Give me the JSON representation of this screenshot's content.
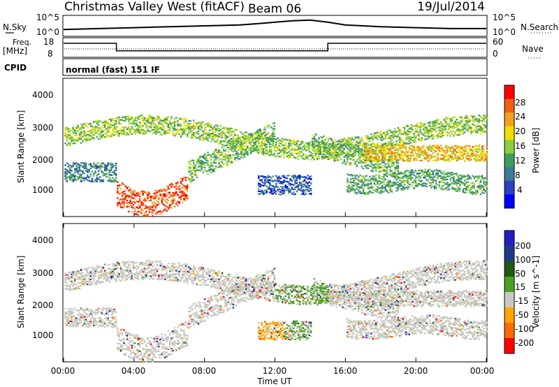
{
  "header": {
    "station": "Christmas Valley West (fitACF)",
    "beam": "Beam 06",
    "date": "19/Jul/2014"
  },
  "sky": {
    "left_label": "N.Sky",
    "left_ticks": [
      "10^5",
      "10^0"
    ],
    "right_label": "N.Search",
    "right_ticks": [
      "10^5",
      "10^0"
    ]
  },
  "freq": {
    "left_label_1": "Freq.",
    "left_label_2": "[MHz]",
    "left_ticks": [
      "18",
      "8"
    ],
    "right_label": "Nave",
    "right_ticks": [
      "60",
      "0"
    ]
  },
  "cpid": {
    "label": "CPID",
    "mode_text": "normal (fast) 151 IF"
  },
  "x_axis": {
    "label": "Time UT",
    "ticks": [
      "00:00",
      "04:00",
      "08:00",
      "12:00",
      "16:00",
      "20:00",
      "00:00"
    ]
  },
  "colors": {
    "power": [
      "#0000ff",
      "#2a40c0",
      "#3a7a9a",
      "#3f9e5a",
      "#8ad040",
      "#f0e000",
      "#f0a020",
      "#f06010",
      "#ff0000"
    ],
    "velocity": [
      "#ff0000",
      "#ff6a00",
      "#ffa500",
      "#c8c8c0",
      "#4aa020",
      "#1f5a14",
      "#1f3a8a",
      "#2020c0"
    ]
  },
  "chart_data": [
    {
      "type": "line",
      "title": "",
      "xlabel": "Time UT",
      "ylabel": "N.Sky",
      "x_range_hours": [
        0,
        24
      ],
      "series": [
        {
          "name": "N.Sky",
          "x": [
            0,
            2,
            4,
            6,
            8,
            10,
            11,
            12,
            13,
            14,
            15,
            16,
            18,
            20,
            22,
            24
          ],
          "y": [
            0.3,
            0.35,
            0.4,
            0.45,
            0.5,
            0.55,
            0.62,
            0.7,
            0.78,
            0.82,
            0.7,
            0.55,
            0.45,
            0.4,
            0.35,
            0.35
          ]
        }
      ]
    },
    {
      "type": "line",
      "title": "",
      "xlabel": "Time UT",
      "ylabel": "Freq. [MHz]",
      "ylim": [
        8,
        18
      ],
      "series": [
        {
          "name": "Freq.",
          "x": [
            0,
            3,
            3,
            15,
            15,
            24
          ],
          "y": [
            15.5,
            15.5,
            11,
            11,
            15.5,
            15.5
          ]
        }
      ]
    },
    {
      "type": "heatmap",
      "title": "",
      "xlabel": "Time UT",
      "ylabel": "Slant Range [km]",
      "colorbar_label": "Power [dB]",
      "colorbar_ticks": [
        "28",
        "24",
        "20",
        "16",
        "12",
        "8",
        "4"
      ],
      "y_ticks": [
        "4000",
        "3000",
        "2000",
        "1000"
      ],
      "ylim": [
        180,
        4500
      ]
    },
    {
      "type": "heatmap",
      "title": "",
      "xlabel": "Time UT",
      "ylabel": "Slant Range [km]",
      "colorbar_label": "Velocity [m s^-1]",
      "colorbar_ticks": [
        "200",
        "100",
        "50",
        "15",
        "-15",
        "-50",
        "-100",
        "-200"
      ],
      "y_ticks": [
        "4000",
        "3000",
        "2000",
        "1000"
      ],
      "ylim": [
        180,
        4500
      ]
    }
  ]
}
